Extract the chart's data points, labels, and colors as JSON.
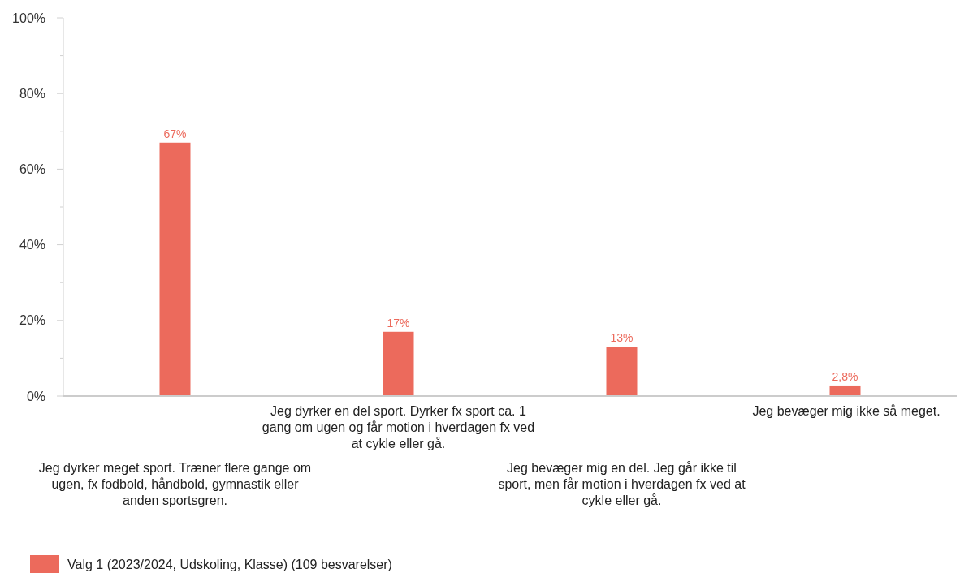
{
  "chart_data": {
    "type": "bar",
    "categories": [
      "Jeg dyrker meget sport. Træner flere gange om ugen, fx fodbold, håndbold, gymnastik eller anden sportsgren.",
      "Jeg dyrker en del sport. Dyrker fx sport ca. 1 gang om ugen og får motion i hverdagen fx ved at cykle eller gå.",
      "Jeg bevæger mig en del. Jeg går ikke til sport, men får motion i hverdagen fx ved at cykle eller gå.",
      "Jeg bevæger mig ikke så meget."
    ],
    "series": [
      {
        "name": "Valg 1 (2023/2024, Udskoling, Klasse) (109 besvarelser)",
        "color": "#ec6a5c",
        "values": [
          67,
          17,
          13,
          2.8
        ],
        "value_labels": [
          "67%",
          "17%",
          "13%",
          "2,8%"
        ]
      }
    ],
    "ylim": [
      0,
      100
    ],
    "yticks": [
      {
        "value": 0,
        "label": "0%"
      },
      {
        "value": 10,
        "label": null
      },
      {
        "value": 20,
        "label": "20%"
      },
      {
        "value": 30,
        "label": null
      },
      {
        "value": 40,
        "label": "40%"
      },
      {
        "value": 50,
        "label": null
      },
      {
        "value": 60,
        "label": "60%"
      },
      {
        "value": 70,
        "label": null
      },
      {
        "value": 80,
        "label": "80%"
      },
      {
        "value": 90,
        "label": null
      },
      {
        "value": 100,
        "label": "100%"
      }
    ],
    "grid": false,
    "legend": "bottom left"
  }
}
